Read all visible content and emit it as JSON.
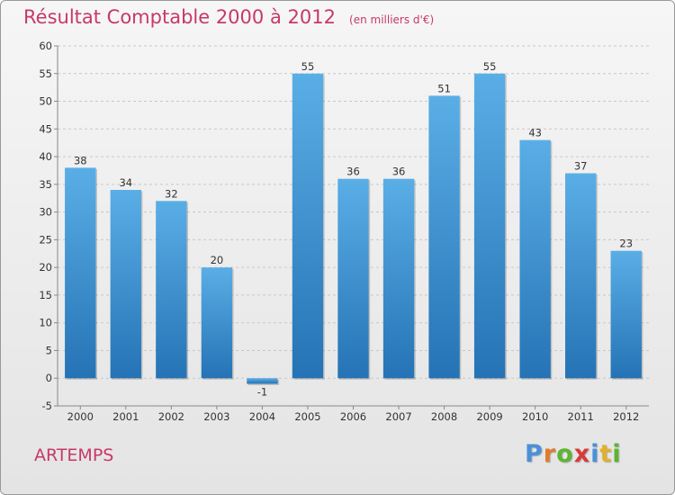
{
  "header": {
    "title": "Résultat Comptable 2000 à 2012",
    "unit": "(en milliers d'€)"
  },
  "commune": "ARTEMPS",
  "logo": {
    "letters": [
      "P",
      "r",
      "o",
      "x",
      "i",
      "t",
      "i"
    ]
  },
  "colors": {
    "title": "#c8386a",
    "bar_top": "#5aaee6",
    "bar_bottom": "#2573b5",
    "logo": [
      "#4a90d9",
      "#e07b2b",
      "#5cb531",
      "#d93a3a",
      "#4a90d9",
      "#e0b12b",
      "#5cb531"
    ]
  },
  "chart_data": {
    "type": "bar",
    "categories": [
      "2000",
      "2001",
      "2002",
      "2003",
      "2004",
      "2005",
      "2006",
      "2007",
      "2008",
      "2009",
      "2010",
      "2011",
      "2012"
    ],
    "values": [
      38,
      34,
      32,
      20,
      -1,
      55,
      36,
      36,
      51,
      55,
      43,
      37,
      23
    ],
    "value_labels": [
      "38",
      "34",
      "32",
      "20",
      "-1",
      "55",
      "36",
      "36",
      "51",
      "55",
      "43",
      "37",
      "23"
    ],
    "title": "Résultat Comptable 2000 à 2012",
    "xlabel": "",
    "ylabel": "",
    "ylim": [
      -5,
      60
    ],
    "yticks": [
      -5,
      0,
      5,
      10,
      15,
      20,
      25,
      30,
      35,
      40,
      45,
      50,
      55,
      60
    ],
    "grid": true,
    "legend": "none"
  }
}
